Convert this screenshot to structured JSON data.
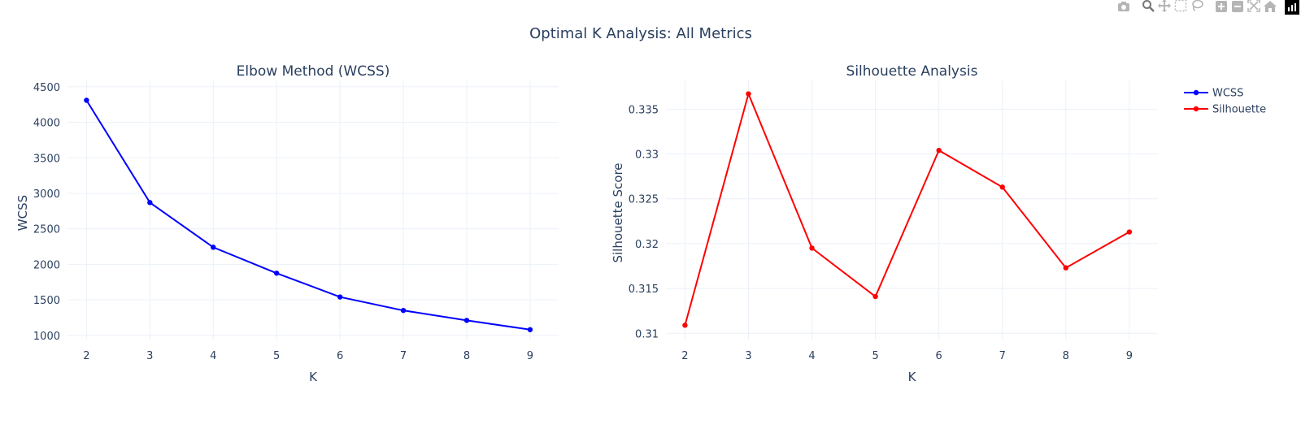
{
  "modebar": {
    "buttons": [
      "camera-icon",
      "zoom-icon",
      "pan-icon",
      "box-select-icon",
      "lasso-icon",
      "zoom-in-icon",
      "zoom-out-icon",
      "autoscale-icon",
      "reset-axes-icon"
    ],
    "logo": "plotly-logo-icon"
  },
  "title": "Optimal K Analysis: All Metrics",
  "legend": {
    "position": "top-right",
    "items": [
      {
        "name": "WCSS",
        "color": "#0000ff"
      },
      {
        "name": "Silhouette",
        "color": "#ff0000"
      }
    ]
  },
  "chart_data": [
    {
      "type": "line",
      "title": "Elbow Method (WCSS)",
      "xlabel": "K",
      "ylabel": "WCSS",
      "x": [
        2,
        3,
        4,
        5,
        6,
        7,
        8,
        9
      ],
      "xticks": [
        "2",
        "3",
        "4",
        "5",
        "6",
        "7",
        "8",
        "9"
      ],
      "yticks": [
        "1000",
        "1500",
        "2000",
        "2500",
        "3000",
        "3500",
        "4000",
        "4500"
      ],
      "ytick_values": [
        1000,
        1500,
        2000,
        2500,
        3000,
        3500,
        4000,
        4500
      ],
      "xlim": [
        1.7,
        9.45
      ],
      "ylim": [
        940,
        4590
      ],
      "grid": true,
      "series": [
        {
          "name": "WCSS",
          "color": "#0000ff",
          "values": [
            4310,
            2870,
            2240,
            1875,
            1540,
            1350,
            1210,
            1080
          ]
        }
      ]
    },
    {
      "type": "line",
      "title": "Silhouette Analysis",
      "xlabel": "K",
      "ylabel": "Silhouette Score",
      "x": [
        2,
        3,
        4,
        5,
        6,
        7,
        8,
        9
      ],
      "xticks": [
        "2",
        "3",
        "4",
        "5",
        "6",
        "7",
        "8",
        "9"
      ],
      "yticks": [
        "0.31",
        "0.315",
        "0.32",
        "0.325",
        "0.33",
        "0.335"
      ],
      "ytick_values": [
        0.31,
        0.315,
        0.32,
        0.325,
        0.33,
        0.335
      ],
      "xlim": [
        1.7,
        9.45
      ],
      "ylim": [
        0.3093,
        0.3382
      ],
      "grid": true,
      "series": [
        {
          "name": "Silhouette",
          "color": "#ff0000",
          "values": [
            0.3109,
            0.3367,
            0.3195,
            0.3141,
            0.3304,
            0.3263,
            0.3173,
            0.3213
          ]
        }
      ]
    }
  ]
}
